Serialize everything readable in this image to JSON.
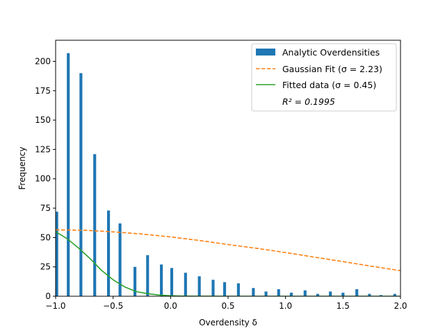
{
  "chart_data": {
    "type": "bar",
    "xlabel": "Overdensity δ",
    "ylabel": "Frequency",
    "xlim": [
      -1.0,
      2.0
    ],
    "ylim": [
      0,
      218
    ],
    "grid": false,
    "legend_position": "top-right",
    "x_ticks": [
      -1.0,
      -0.5,
      0.0,
      0.5,
      1.0,
      1.5,
      2.0
    ],
    "x_tick_labels": [
      "−1.0",
      "−0.5",
      "0.0",
      "0.5",
      "1.0",
      "1.5",
      "2.0"
    ],
    "y_ticks": [
      0,
      25,
      50,
      75,
      100,
      125,
      150,
      175,
      200
    ],
    "y_tick_labels": [
      "0",
      "25",
      "50",
      "75",
      "100",
      "125",
      "150",
      "175",
      "200"
    ],
    "colors": {
      "bars": "#1f77b4",
      "gaussian": "#ff7f0e",
      "fitted": "#2ca02c"
    },
    "series": [
      {
        "name": "Analytic Overdensities",
        "kind": "bar",
        "bar_width": 0.025,
        "x": [
          -0.99,
          -0.89,
          -0.78,
          -0.66,
          -0.54,
          -0.44,
          -0.31,
          -0.2,
          -0.08,
          0.01,
          0.13,
          0.25,
          0.37,
          0.47,
          0.59,
          0.72,
          0.83,
          0.94,
          1.05,
          1.17,
          1.28,
          1.39,
          1.5,
          1.62,
          1.73,
          1.83,
          1.95
        ],
        "values": [
          72,
          207,
          190,
          121,
          73,
          62,
          25,
          35,
          27,
          24,
          20,
          17,
          14,
          12,
          11,
          7,
          4,
          6,
          3,
          5,
          2,
          4,
          3,
          6,
          2,
          1,
          2
        ]
      },
      {
        "name": "Gaussian Fit (σ = 2.23)",
        "kind": "line",
        "style": "dashed",
        "x": [
          -1.0,
          -0.75,
          -0.5,
          -0.25,
          0.0,
          0.25,
          0.5,
          0.75,
          1.0,
          1.25,
          1.5,
          1.75,
          2.0
        ],
        "values": [
          56.5,
          56.2,
          54.8,
          53.0,
          50.5,
          47.5,
          44.0,
          40.8,
          37.2,
          33.3,
          29.5,
          25.5,
          21.8
        ]
      },
      {
        "name": "Fitted data (σ = 0.45)",
        "kind": "line",
        "style": "solid",
        "x": [
          -1.0,
          -0.9,
          -0.8,
          -0.7,
          -0.6,
          -0.5,
          -0.4,
          -0.3,
          -0.2,
          -0.1,
          0.0,
          0.1,
          0.2,
          0.3,
          0.5,
          2.0
        ],
        "values": [
          55,
          49,
          41,
          32,
          22,
          14,
          8,
          4,
          2.2,
          1,
          0.4,
          0.15,
          0.05,
          0.02,
          0,
          0
        ]
      }
    ],
    "annotation": "R² = 0.1995"
  }
}
